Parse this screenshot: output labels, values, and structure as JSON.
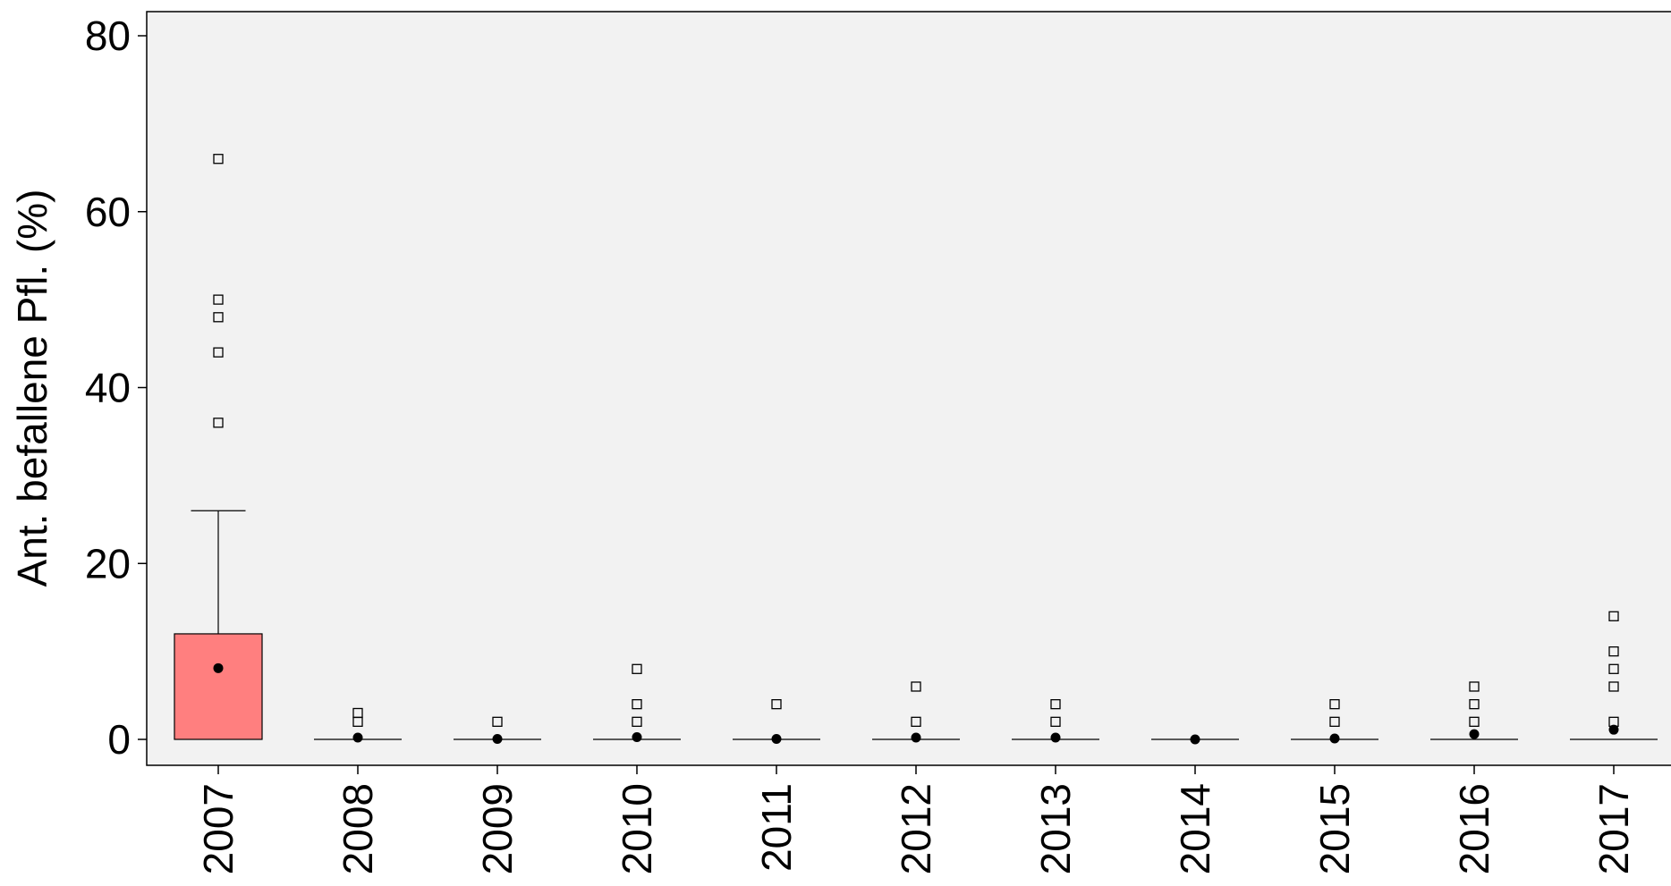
{
  "chart_data": {
    "type": "boxplot",
    "title": "",
    "xlabel": "",
    "ylabel": "Ant. befallene Pfl.  (%)",
    "ylim": [
      -3,
      83
    ],
    "yticks": [
      0,
      20,
      40,
      60,
      80
    ],
    "grid": false,
    "categories": [
      "2007",
      "2008",
      "2009",
      "2010",
      "2011",
      "2012",
      "2013",
      "2014",
      "2015",
      "2016",
      "2017"
    ],
    "boxes": [
      {
        "q1": 0,
        "q3": 12,
        "median": 0,
        "whisker_low": 0,
        "whisker_high": 26,
        "mean": 8.1,
        "outliers": [
          36,
          44,
          48,
          50,
          66
        ]
      },
      {
        "q1": 0,
        "q3": 0,
        "median": 0,
        "whisker_low": 0,
        "whisker_high": 0,
        "mean": 0.2,
        "outliers": [
          2,
          3
        ]
      },
      {
        "q1": 0,
        "q3": 0,
        "median": 0,
        "whisker_low": 0,
        "whisker_high": 0,
        "mean": 0.05,
        "outliers": [
          2
        ]
      },
      {
        "q1": 0,
        "q3": 0,
        "median": 0,
        "whisker_low": 0,
        "whisker_high": 0,
        "mean": 0.25,
        "outliers": [
          2,
          4,
          8
        ]
      },
      {
        "q1": 0,
        "q3": 0,
        "median": 0,
        "whisker_low": 0,
        "whisker_high": 0,
        "mean": 0.05,
        "outliers": [
          4
        ]
      },
      {
        "q1": 0,
        "q3": 0,
        "median": 0,
        "whisker_low": 0,
        "whisker_high": 0,
        "mean": 0.2,
        "outliers": [
          2,
          6
        ]
      },
      {
        "q1": 0,
        "q3": 0,
        "median": 0,
        "whisker_low": 0,
        "whisker_high": 0,
        "mean": 0.2,
        "outliers": [
          2,
          4
        ]
      },
      {
        "q1": 0,
        "q3": 0,
        "median": 0,
        "whisker_low": 0,
        "whisker_high": 0,
        "mean": 0.0,
        "outliers": []
      },
      {
        "q1": 0,
        "q3": 0,
        "median": 0,
        "whisker_low": 0,
        "whisker_high": 0,
        "mean": 0.1,
        "outliers": [
          2,
          4
        ]
      },
      {
        "q1": 0,
        "q3": 0,
        "median": 0,
        "whisker_low": 0,
        "whisker_high": 0,
        "mean": 0.6,
        "outliers": [
          2,
          4,
          6
        ]
      },
      {
        "q1": 0,
        "q3": 0,
        "median": 0,
        "whisker_low": 0,
        "whisker_high": 0,
        "mean": 1.1,
        "outliers": [
          2,
          6,
          8,
          10,
          14
        ]
      }
    ],
    "colors": {
      "box_fill": "#ff7f7f",
      "plot_background": "#f2f2f2",
      "outline": "#000000"
    },
    "outlier_marker": "open-square",
    "mean_marker": "filled-circle"
  }
}
